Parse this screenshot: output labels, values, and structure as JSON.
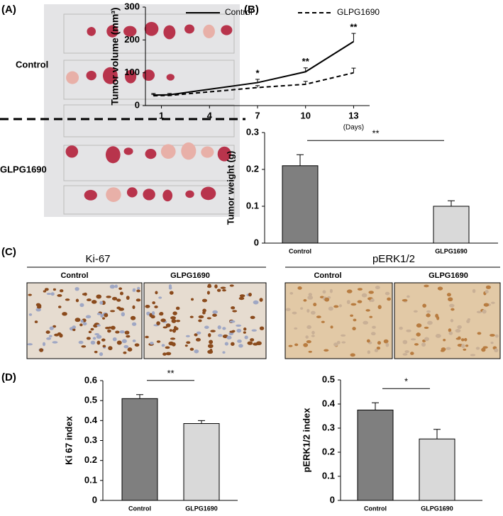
{
  "panel_labels": [
    "(A)",
    "(B)",
    "(C)",
    "(D)"
  ],
  "photo": {
    "labels": [
      "Control",
      "GLPG1690"
    ]
  },
  "ihc": [
    {
      "title": "Ki-67",
      "groups": [
        "Control",
        "GLPG1690"
      ]
    },
    {
      "title": "pERK1/2",
      "groups": [
        "Control",
        "GLPG1690"
      ]
    }
  ],
  "chart_data": [
    {
      "type": "line",
      "ylabel": "Tumor volume (mm³)",
      "xlabel": "(Days)",
      "x": [
        0.5,
        1.5,
        7,
        10,
        13
      ],
      "xlim": [
        0,
        14
      ],
      "xticks": [
        1,
        4,
        7,
        10,
        13
      ],
      "ylim": [
        0,
        300
      ],
      "yticks": [
        0,
        100,
        200,
        300
      ],
      "series": [
        {
          "name": "Control",
          "color": "#000000",
          "dash": false,
          "values": [
            32,
            33,
            70,
            103,
            195
          ],
          "errors": [
            5,
            4,
            10,
            12,
            25
          ]
        },
        {
          "name": "GLPG1690",
          "color": "#000000",
          "dash": true,
          "values": [
            30,
            31,
            55,
            65,
            100
          ],
          "errors": [
            4,
            3,
            6,
            9,
            14
          ]
        }
      ],
      "annotations": [
        {
          "x": 7,
          "text": "*"
        },
        {
          "x": 10,
          "text": "**"
        },
        {
          "x": 13,
          "text": "**"
        }
      ]
    },
    {
      "type": "bar",
      "ylabel": "Tumor weight (g)",
      "categories": [
        "Control",
        "GLPG1690"
      ],
      "values": [
        0.21,
        0.1
      ],
      "errors": [
        0.03,
        0.015
      ],
      "colors": [
        "#7f7f7f",
        "#d9d9d9"
      ],
      "ylim": [
        0,
        0.3
      ],
      "yticks": [
        0,
        0.1,
        0.2,
        0.3
      ],
      "significance": "**"
    },
    {
      "type": "bar",
      "ylabel": "Ki 67 index",
      "categories": [
        "Control",
        "GLPG1690"
      ],
      "values": [
        0.51,
        0.385
      ],
      "errors": [
        0.02,
        0.015
      ],
      "colors": [
        "#7f7f7f",
        "#d9d9d9"
      ],
      "ylim": [
        0,
        0.6
      ],
      "yticks": [
        0,
        0.1,
        0.2,
        0.3,
        0.4,
        0.5,
        0.6
      ],
      "significance": "**"
    },
    {
      "type": "bar",
      "ylabel": "pERK1/2 index",
      "categories": [
        "Control",
        "GLPG1690"
      ],
      "values": [
        0.375,
        0.255
      ],
      "errors": [
        0.03,
        0.04
      ],
      "colors": [
        "#7f7f7f",
        "#d9d9d9"
      ],
      "ylim": [
        0,
        0.5
      ],
      "yticks": [
        0,
        0.1,
        0.2,
        0.3,
        0.4,
        0.5
      ],
      "significance": "*"
    }
  ]
}
